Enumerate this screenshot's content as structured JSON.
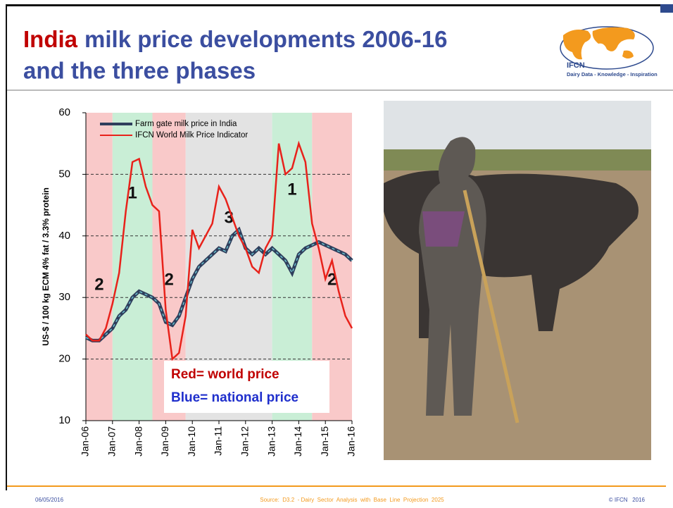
{
  "slide": {
    "title_highlight": "India",
    "title_line1": "milk price developments 2006-16",
    "title_line2": "and the three phases",
    "logo_name": "IFCN",
    "logo_tagline": "Dairy Data - Knowledge - Inspiration",
    "note_red": "Red= world price",
    "note_blue": "Blue= national price",
    "footer_date": "06/05/2016",
    "footer_source": "Source:  D3.2  - Dairy  Sector  Analysis  with  Base  Line  Projection  2025",
    "footer_copyright": "© IFCN   2016"
  },
  "chart_data": {
    "type": "line",
    "ylabel": "US-$ / 100 kg ECM 4% fat / 3.3% protein",
    "categories": [
      "Jan-06",
      null,
      null,
      null,
      "Jan-07",
      null,
      null,
      null,
      "Jan-08",
      null,
      null,
      null,
      "Jan-09",
      null,
      null,
      null,
      "Jan-10",
      null,
      null,
      null,
      "Jan-11",
      null,
      null,
      null,
      "Jan-12",
      null,
      null,
      null,
      "Jan-13",
      null,
      null,
      null,
      "Jan-14",
      null,
      null,
      null,
      "Jan-15",
      null,
      null,
      null,
      "Jan-16"
    ],
    "series": [
      {
        "name": "Farm gate milk price in India",
        "color": "#2f3e5c",
        "values": [
          23.5,
          23,
          23,
          24,
          25,
          27,
          28,
          30,
          31,
          30.5,
          30,
          29,
          26,
          25.5,
          27,
          30,
          33,
          35,
          36,
          37,
          38,
          37.5,
          40,
          41,
          38,
          37,
          38,
          37,
          38,
          37,
          36,
          34,
          37,
          38,
          38.5,
          39,
          38.5,
          38,
          37.5,
          37,
          36
        ]
      },
      {
        "name": "IFCN World Milk Price Indicator",
        "color": "#e8221b",
        "values": [
          24,
          23,
          23,
          25,
          29,
          34,
          44,
          52,
          52.5,
          48,
          45,
          44,
          28,
          20,
          21,
          27,
          41,
          38,
          40,
          42,
          48,
          46,
          43,
          40,
          38,
          35,
          34,
          38,
          40,
          55,
          50,
          51,
          55,
          52,
          42,
          38,
          33,
          36,
          31,
          27,
          25
        ]
      }
    ],
    "phases": [
      {
        "from": 0,
        "to": 4,
        "color": "#f9c9c9",
        "label": "2"
      },
      {
        "from": 4,
        "to": 10,
        "color": "#c9eed6",
        "label": "1"
      },
      {
        "from": 10,
        "to": 15,
        "color": "#f9c9c9",
        "label": "2"
      },
      {
        "from": 15,
        "to": 28,
        "color": "#e3e3e3",
        "label": "3"
      },
      {
        "from": 28,
        "to": 34,
        "color": "#c9eed6",
        "label": "1"
      },
      {
        "from": 34,
        "to": 40,
        "color": "#f9c9c9",
        "label": "2"
      }
    ],
    "ylim": [
      10,
      60
    ],
    "yticks": [
      10,
      20,
      30,
      40,
      50,
      60
    ],
    "grid": true
  }
}
